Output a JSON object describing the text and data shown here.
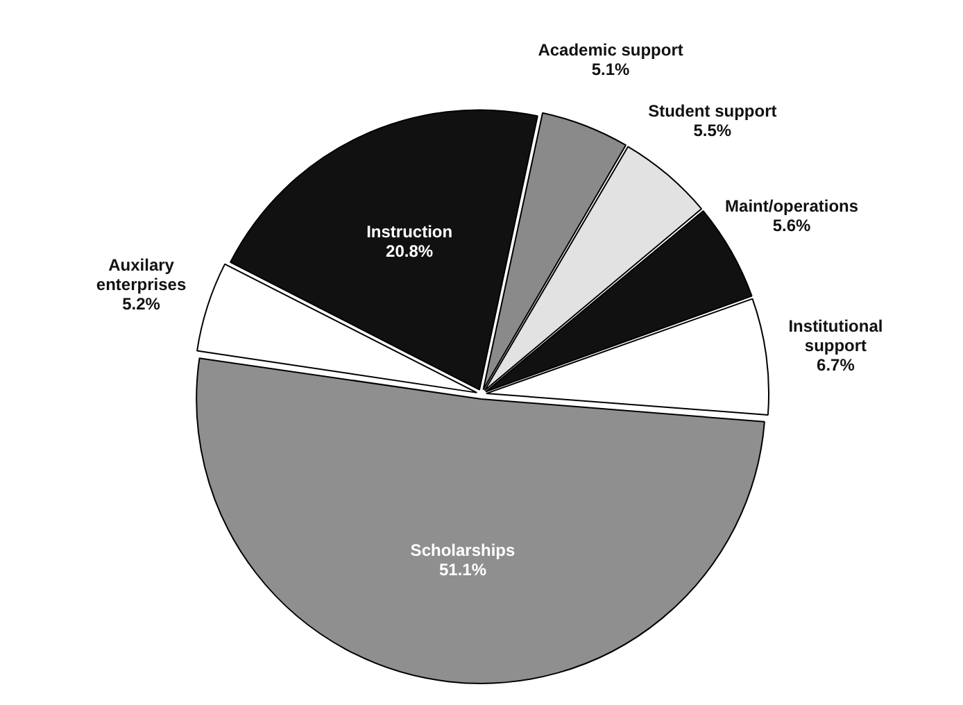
{
  "chart_data": {
    "type": "pie",
    "categories": [
      "Academic support",
      "Student support",
      "Maint/operations",
      "Institutional support",
      "Scholarships",
      "Auxilary enterprises",
      "Instruction"
    ],
    "values": [
      5.1,
      5.5,
      5.6,
      6.7,
      51.1,
      5.2,
      20.8
    ],
    "value_labels": [
      "5.1%",
      "5.5%",
      "5.6%",
      "6.7%",
      "51.1%",
      "5.2%",
      "20.8%"
    ],
    "colors": [
      "#8a8a8a",
      "#e2e2e2",
      "#111111",
      "#ffffff",
      "#8f8f8f",
      "#ffffff",
      "#111111"
    ],
    "legend": false
  }
}
